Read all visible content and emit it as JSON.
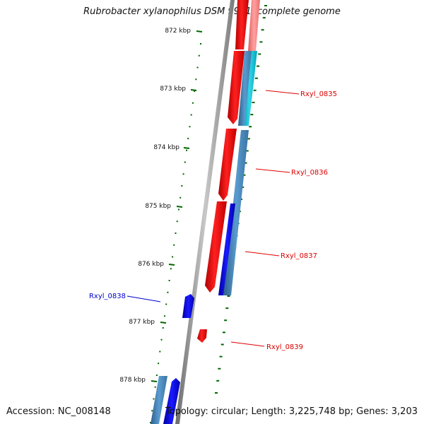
{
  "title": "Rubrobacter xylanophilus DSM 9941, complete genome",
  "accession": "Accession: NC_008148",
  "topology": "Topology: circular; Length: 3,225,748 bp; Genes: 3,203",
  "ticks": [
    "872 kbp",
    "873 kbp",
    "874 kbp",
    "875 kbp",
    "876 kbp",
    "877 kbp",
    "878 kbp"
  ],
  "genes": [
    {
      "name": "Rxyl_0835",
      "color": "#dd0000"
    },
    {
      "name": "Rxyl_0836",
      "color": "#dd0000"
    },
    {
      "name": "Rxyl_0837",
      "color": "#dd0000"
    },
    {
      "name": "Rxyl_0838",
      "color": "#0000cc"
    },
    {
      "name": "Rxyl_0839",
      "color": "#dd0000"
    }
  ],
  "colors": {
    "forward_cds": "#ff0000",
    "reverse_cds": "#0000ff",
    "steelblue_track": "#4682b4",
    "cyan_track": "#00bcd4",
    "pink_track": "#f08080",
    "backbone": "#808080",
    "tick": "#006600"
  }
}
